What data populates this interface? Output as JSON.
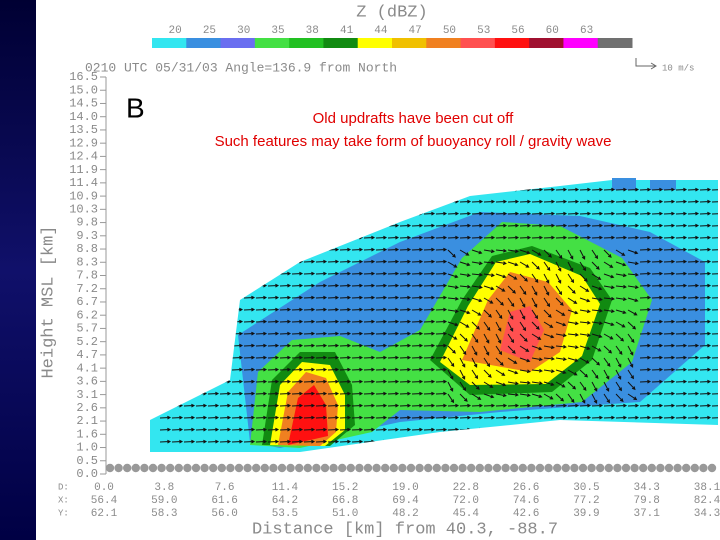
{
  "chart_data": {
    "type": "contour",
    "title": "Z (dBZ)",
    "colorbar_labels": [
      "20",
      "25",
      "30",
      "35",
      "38",
      "41",
      "44",
      "47",
      "50",
      "53",
      "56",
      "60",
      "63"
    ],
    "colorbar_colors": [
      "#33e6f0",
      "#3a8fe0",
      "#6a6ef0",
      "#44e044",
      "#22c022",
      "#118a11",
      "#ffff00",
      "#f0c000",
      "#f08020",
      "#ff5050",
      "#ff1010",
      "#a01030",
      "#ff00ff",
      "#707070"
    ],
    "header": "0210 UTC  05/31/03  Angle=136.9 from North",
    "vector_scale": "10 m/s",
    "panel_label": "B",
    "annotations": [
      "Old updrafts have been cut off",
      "Such features may take form of buoyancy roll / gravity wave"
    ],
    "ylabel": "Height MSL [km]",
    "ycategories": [
      "0.0",
      "0.5",
      "1.0",
      "1.6",
      "2.1",
      "2.6",
      "3.1",
      "3.6",
      "4.1",
      "4.7",
      "5.2",
      "5.7",
      "6.2",
      "6.7",
      "7.2",
      "7.8",
      "8.3",
      "8.8",
      "9.3",
      "9.8",
      "10.3",
      "10.9",
      "11.4",
      "11.9",
      "12.4",
      "12.9",
      "13.5",
      "14.0",
      "14.5",
      "15.0",
      "16.5"
    ],
    "xrow_names": [
      "D:",
      "X:",
      "Y:"
    ],
    "xrows": [
      [
        "0.0",
        "3.8",
        "7.6",
        "11.4",
        "15.2",
        "19.0",
        "22.8",
        "26.6",
        "30.5",
        "34.3",
        "38.1"
      ],
      [
        "56.4",
        "59.0",
        "61.6",
        "64.2",
        "66.8",
        "69.4",
        "72.0",
        "74.6",
        "77.2",
        "79.8",
        "82.4"
      ],
      [
        "62.1",
        "58.3",
        "56.0",
        "53.5",
        "51.0",
        "48.2",
        "45.4",
        "42.6",
        "39.9",
        "37.1",
        "34.3"
      ]
    ],
    "xlabel": "Distance [km] from 40.3, -88.7"
  }
}
